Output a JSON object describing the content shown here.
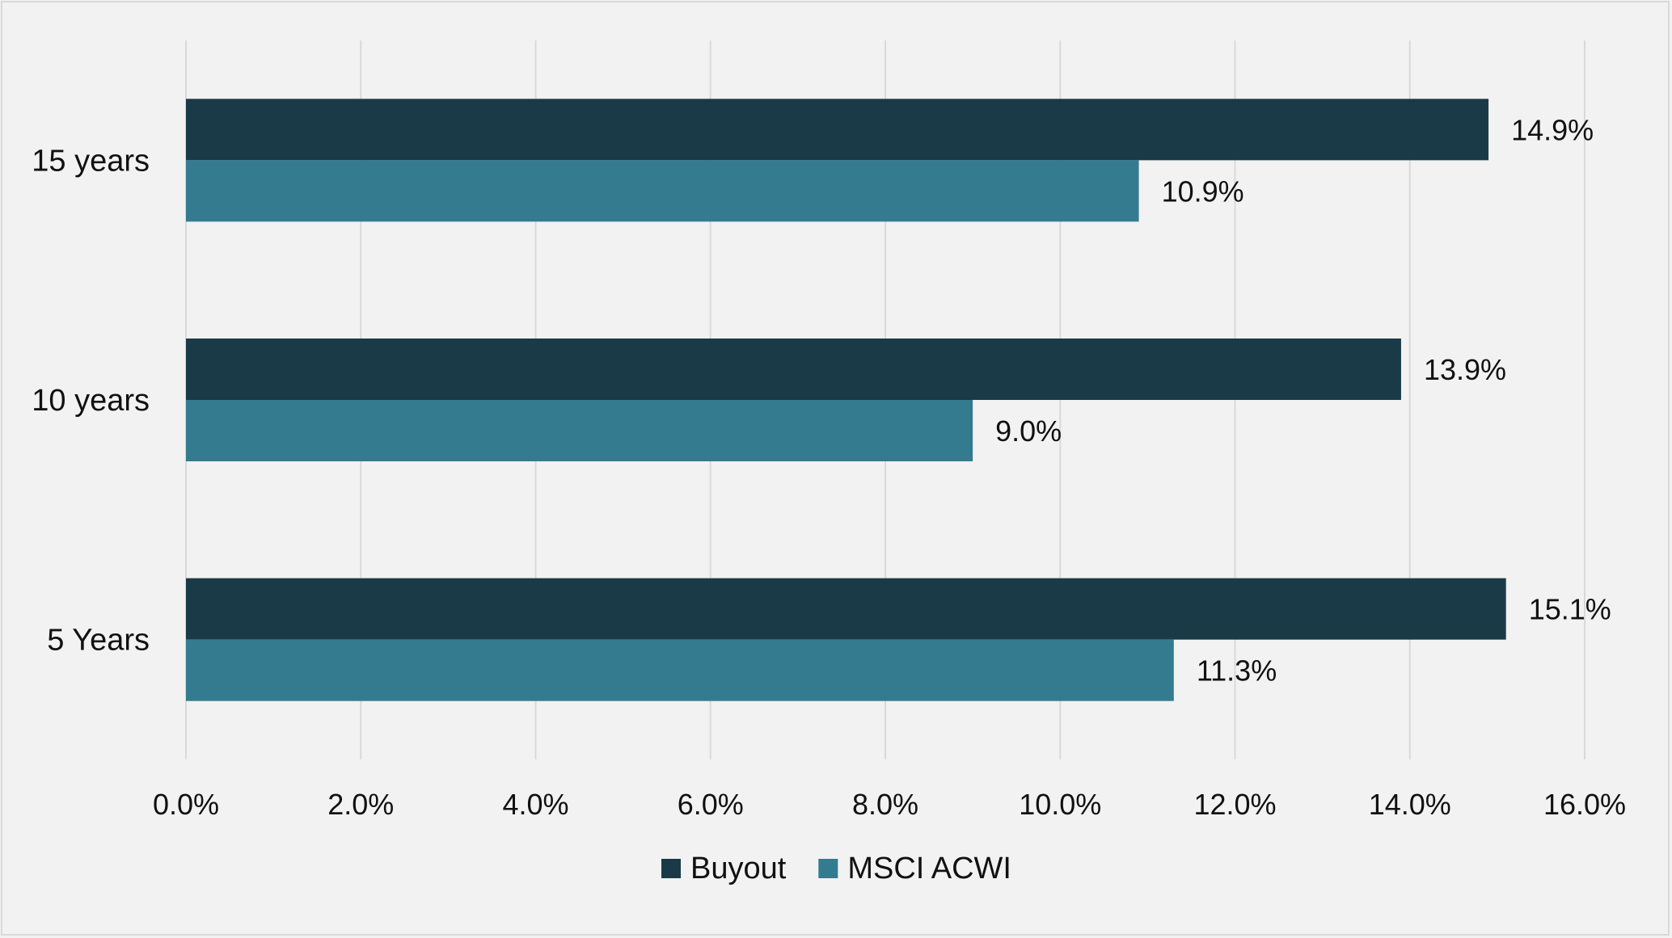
{
  "chart_data": {
    "type": "bar",
    "orientation": "horizontal",
    "categories": [
      "15 years",
      "10 years",
      "5 Years"
    ],
    "series": [
      {
        "name": "Buyout",
        "values": [
          14.9,
          13.9,
          15.1
        ],
        "labels": [
          "14.9%",
          "13.9%",
          "15.1%"
        ],
        "color": "#1b3a47"
      },
      {
        "name": "MSCI ACWI",
        "values": [
          10.9,
          9.0,
          11.3
        ],
        "labels": [
          "10.9%",
          "9.0%",
          "11.3%"
        ],
        "color": "#347b90"
      }
    ],
    "xlim": [
      0,
      16
    ],
    "xticks": [
      0,
      2,
      4,
      6,
      8,
      10,
      12,
      14,
      16
    ],
    "xtick_labels": [
      "0.0%",
      "2.0%",
      "4.0%",
      "6.0%",
      "8.0%",
      "10.0%",
      "12.0%",
      "14.0%",
      "16.0%"
    ],
    "grid": "vertical",
    "legend_position": "bottom",
    "gridline_color": "#d9d9d9"
  }
}
